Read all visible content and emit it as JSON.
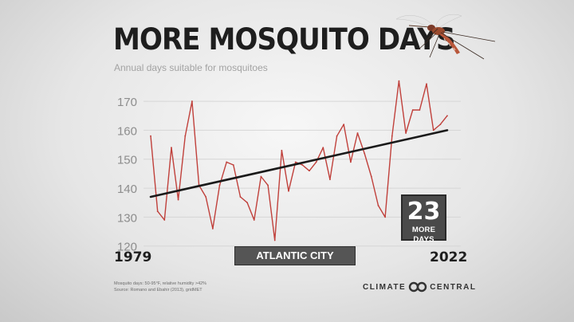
{
  "header": {
    "title": "MORE MOSQUITO DAYS",
    "subtitle": "Annual days suitable for mosquitoes"
  },
  "badge": {
    "number": "23",
    "text": "MORE DAYS"
  },
  "years": {
    "start": "1979",
    "end": "2022"
  },
  "location": "ATLANTIC CITY",
  "footnote": {
    "line1": "Mosquito days: 50-95°F, relative humidity >42%",
    "line2": "Source: Romano and Ebahir (2013), gridMET"
  },
  "brand": {
    "left": "CLIMATE",
    "right": "CENTRAL",
    "icon": "climate-central-logo-icon"
  },
  "colors": {
    "series": "#c0403b",
    "trend": "#1a1a1a",
    "badge": "#4a4a4a",
    "grid": "#d6d6d6"
  },
  "chart_data": {
    "type": "line",
    "x": [
      1979,
      1980,
      1981,
      1982,
      1983,
      1984,
      1985,
      1986,
      1987,
      1988,
      1989,
      1990,
      1991,
      1992,
      1993,
      1994,
      1995,
      1996,
      1997,
      1998,
      1999,
      2000,
      2001,
      2002,
      2003,
      2004,
      2005,
      2006,
      2007,
      2008,
      2009,
      2010,
      2011,
      2012,
      2013,
      2014,
      2015,
      2016,
      2017,
      2018,
      2019,
      2020,
      2021,
      2022
    ],
    "series": [
      {
        "name": "",
        "values": [
          158,
          132,
          129,
          154,
          136,
          158,
          170,
          141,
          137,
          126,
          141,
          149,
          148,
          137,
          135,
          129,
          144,
          141,
          122,
          153,
          139,
          149,
          148,
          146,
          149,
          154,
          143,
          158,
          162,
          149,
          159,
          152,
          144,
          134,
          130,
          158,
          177,
          159,
          167,
          167,
          176,
          160,
          162,
          165
        ]
      }
    ],
    "trend": {
      "start": 137,
      "end": 160
    },
    "yticks": [
      120,
      130,
      140,
      150,
      160,
      170
    ],
    "ylim": [
      118,
      178
    ],
    "xlim": [
      1979,
      2022
    ],
    "grid": true,
    "legend": "none"
  }
}
